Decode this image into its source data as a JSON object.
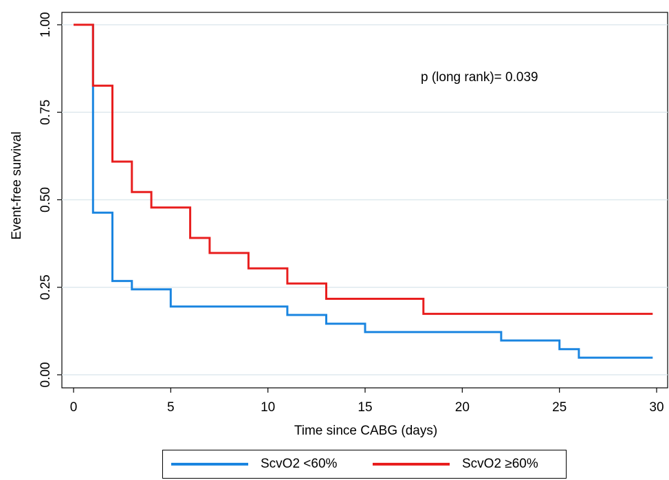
{
  "chart_data": {
    "type": "line",
    "step": true,
    "title": "",
    "xlabel": "Time since CABG (days)",
    "ylabel": "Event-free survival",
    "xlim": [
      0,
      30
    ],
    "ylim": [
      0,
      1
    ],
    "xticks": [
      "0",
      "5",
      "10",
      "15",
      "20",
      "25",
      "30"
    ],
    "yticks": [
      "0.00",
      "0.25",
      "0.50",
      "0.75",
      "1.00"
    ],
    "grid": "horizontal",
    "annotation": "p (long rank)= 0.039",
    "legend_position": "bottom",
    "series": [
      {
        "name": "ScvO2 <60%",
        "color": "#1a85e0",
        "points": [
          [
            0,
            1.0
          ],
          [
            1,
            1.0
          ],
          [
            1,
            0.463
          ],
          [
            2,
            0.463
          ],
          [
            2,
            0.268
          ],
          [
            3,
            0.268
          ],
          [
            3,
            0.244
          ],
          [
            5,
            0.244
          ],
          [
            5,
            0.195
          ],
          [
            11,
            0.195
          ],
          [
            11,
            0.171
          ],
          [
            13,
            0.171
          ],
          [
            13,
            0.146
          ],
          [
            15,
            0.146
          ],
          [
            15,
            0.122
          ],
          [
            22,
            0.122
          ],
          [
            22,
            0.098
          ],
          [
            25,
            0.098
          ],
          [
            25,
            0.073
          ],
          [
            26,
            0.073
          ],
          [
            26,
            0.049
          ],
          [
            29.8,
            0.049
          ]
        ]
      },
      {
        "name": "ScvO2 ≥60%",
        "color": "#e81e1e",
        "points": [
          [
            0,
            1.0
          ],
          [
            1,
            1.0
          ],
          [
            1,
            0.826
          ],
          [
            2,
            0.826
          ],
          [
            2,
            0.609
          ],
          [
            3,
            0.609
          ],
          [
            3,
            0.522
          ],
          [
            4,
            0.522
          ],
          [
            4,
            0.478
          ],
          [
            6,
            0.478
          ],
          [
            6,
            0.391
          ],
          [
            7,
            0.391
          ],
          [
            7,
            0.348
          ],
          [
            9,
            0.348
          ],
          [
            9,
            0.304
          ],
          [
            11,
            0.304
          ],
          [
            11,
            0.261
          ],
          [
            13,
            0.261
          ],
          [
            13,
            0.217
          ],
          [
            18,
            0.217
          ],
          [
            18,
            0.174
          ],
          [
            29.8,
            0.174
          ]
        ]
      }
    ]
  }
}
